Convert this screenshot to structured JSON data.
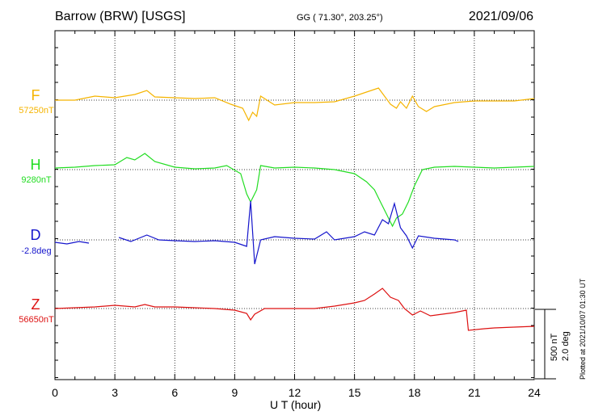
{
  "header": {
    "title": "Barrow (BRW)  [USGS]",
    "coords": "GG ( 71.30°, 203.25°)",
    "date": "2021/09/06"
  },
  "footer": {
    "plotted": "Plotted at 2021/10/07 01:30 UT",
    "scale_nt": "500 nT",
    "scale_deg": "2.0 deg"
  },
  "chart_data": {
    "type": "line",
    "xlabel": "U T (hour)",
    "xlim": [
      0,
      24
    ],
    "xticks": [
      0,
      3,
      6,
      9,
      12,
      15,
      18,
      21,
      24
    ],
    "grid": true,
    "components": [
      {
        "name": "F",
        "baseline": "57250nT",
        "color": "#f5b400",
        "points": [
          [
            0,
            0
          ],
          [
            1,
            0
          ],
          [
            2,
            5
          ],
          [
            3,
            3
          ],
          [
            4,
            7
          ],
          [
            4.6,
            12
          ],
          [
            5,
            4
          ],
          [
            6,
            3
          ],
          [
            7,
            2
          ],
          [
            8,
            3
          ],
          [
            8.8,
            -5
          ],
          [
            9.4,
            -10
          ],
          [
            9.7,
            -25
          ],
          [
            9.9,
            -15
          ],
          [
            10.1,
            -20
          ],
          [
            10.3,
            5
          ],
          [
            11,
            -6
          ],
          [
            12,
            -3
          ],
          [
            13,
            -3
          ],
          [
            14,
            -2
          ],
          [
            15,
            5
          ],
          [
            15.6,
            10
          ],
          [
            16.2,
            15
          ],
          [
            16.5,
            5
          ],
          [
            16.8,
            -5
          ],
          [
            17.1,
            -10
          ],
          [
            17.3,
            -2
          ],
          [
            17.6,
            -10
          ],
          [
            17.9,
            5
          ],
          [
            18.2,
            -8
          ],
          [
            18.6,
            -14
          ],
          [
            19,
            -8
          ],
          [
            20,
            -3
          ],
          [
            21,
            -1
          ],
          [
            22,
            -1
          ],
          [
            23,
            -1
          ],
          [
            24,
            2
          ]
        ]
      },
      {
        "name": "H",
        "baseline": "9280nT",
        "color": "#22dd22",
        "points": [
          [
            0,
            2
          ],
          [
            1,
            3
          ],
          [
            2,
            5
          ],
          [
            3,
            6
          ],
          [
            3.6,
            15
          ],
          [
            4,
            12
          ],
          [
            4.5,
            20
          ],
          [
            5,
            10
          ],
          [
            6,
            3
          ],
          [
            7,
            1
          ],
          [
            8,
            2
          ],
          [
            8.6,
            5
          ],
          [
            9.3,
            -5
          ],
          [
            9.6,
            -30
          ],
          [
            9.8,
            -40
          ],
          [
            10.1,
            -25
          ],
          [
            10.3,
            5
          ],
          [
            11,
            2
          ],
          [
            12,
            3
          ],
          [
            13,
            2
          ],
          [
            14,
            0
          ],
          [
            15,
            -5
          ],
          [
            15.6,
            -15
          ],
          [
            16,
            -25
          ],
          [
            16.3,
            -40
          ],
          [
            16.6,
            -55
          ],
          [
            16.9,
            -70
          ],
          [
            17.1,
            -60
          ],
          [
            17.4,
            -55
          ],
          [
            17.7,
            -40
          ],
          [
            18,
            -20
          ],
          [
            18.4,
            0
          ],
          [
            19,
            3
          ],
          [
            20,
            4
          ],
          [
            21,
            3
          ],
          [
            22,
            2
          ],
          [
            23,
            3
          ],
          [
            24,
            4
          ]
        ]
      },
      {
        "name": "D",
        "baseline": "-2.8deg",
        "color": "#1515cc",
        "points": [
          [
            0,
            -3
          ],
          [
            0.6,
            -5
          ],
          [
            1.2,
            -2
          ],
          [
            1.7,
            -4
          ],
          null,
          [
            3.2,
            3
          ],
          [
            3.8,
            -2
          ],
          [
            4.6,
            6
          ],
          [
            5.2,
            0
          ],
          [
            6,
            -1
          ],
          [
            7,
            -2
          ],
          [
            8,
            -1
          ],
          [
            9,
            -3
          ],
          [
            9.6,
            -8
          ],
          [
            9.8,
            48
          ],
          [
            10,
            -30
          ],
          [
            10.3,
            0
          ],
          [
            11,
            4
          ],
          [
            12,
            2
          ],
          [
            13,
            1
          ],
          [
            13.6,
            10
          ],
          [
            14,
            0
          ],
          [
            15,
            4
          ],
          [
            15.5,
            10
          ],
          [
            16,
            6
          ],
          [
            16.4,
            25
          ],
          [
            16.7,
            20
          ],
          [
            17,
            45
          ],
          [
            17.3,
            15
          ],
          [
            17.6,
            5
          ],
          [
            17.9,
            -10
          ],
          [
            18.2,
            5
          ],
          [
            19,
            2
          ],
          [
            20,
            0
          ],
          [
            20.2,
            -2
          ]
        ]
      },
      {
        "name": "Z",
        "baseline": "56650nT",
        "color": "#dd1111",
        "points": [
          [
            0,
            0
          ],
          [
            1,
            1
          ],
          [
            2,
            2
          ],
          [
            3,
            4
          ],
          [
            4,
            2
          ],
          [
            4.5,
            5
          ],
          [
            5,
            2
          ],
          [
            6,
            2
          ],
          [
            7,
            1
          ],
          [
            8,
            0
          ],
          [
            9,
            -2
          ],
          [
            9.6,
            -6
          ],
          [
            9.8,
            -14
          ],
          [
            10,
            -7
          ],
          [
            10.5,
            0
          ],
          [
            11,
            0
          ],
          [
            12,
            0
          ],
          [
            13,
            0
          ],
          [
            14,
            3
          ],
          [
            15,
            7
          ],
          [
            15.5,
            10
          ],
          [
            16,
            18
          ],
          [
            16.4,
            25
          ],
          [
            16.8,
            14
          ],
          [
            17.2,
            10
          ],
          [
            17.5,
            0
          ],
          [
            17.9,
            -8
          ],
          [
            18.3,
            -3
          ],
          [
            18.8,
            -9
          ],
          [
            19.4,
            -7
          ],
          [
            20,
            -5
          ],
          [
            20.6,
            -2
          ],
          [
            20.7,
            -27
          ],
          [
            21.5,
            -25
          ],
          [
            22,
            -24
          ],
          [
            23,
            -23
          ],
          [
            24,
            -22
          ]
        ]
      }
    ]
  }
}
